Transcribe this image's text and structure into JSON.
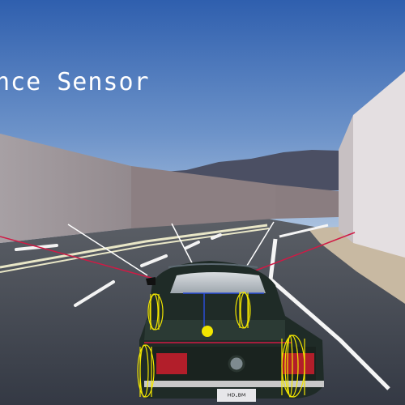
{
  "overlay": {
    "title": "nce Sensor"
  },
  "vehicle": {
    "license_plate": "ᴴᴰ‧ᴮᴹ"
  },
  "sensors": {
    "ray_count": 6,
    "hit_ray_color": "#d01a45",
    "miss_ray_color": "#ffffff"
  },
  "colors": {
    "sky_top": "#2f5fae",
    "sky_bottom": "#a9c3e0",
    "road": "#3b4049",
    "wall": "#a39b9f",
    "wheel_gizmo": "#f2e600",
    "car_body": "#1d2a24"
  }
}
